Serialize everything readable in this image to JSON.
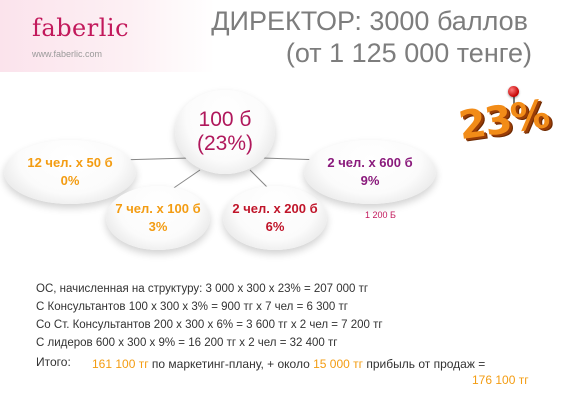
{
  "logo": {
    "name": "faberlic",
    "url": "www.faberlic.com"
  },
  "title": {
    "line1": "ДИРЕКТОР: 3000 баллов",
    "line2": "(от 1 125 000 тенге)"
  },
  "badge": "23%",
  "colors": {
    "brand": "#c2185b",
    "orange": "#f39c12",
    "red": "#c0152a",
    "purple": "#8a1a7c",
    "gray": "#7d7d7d"
  },
  "tree": {
    "main": {
      "line1": "100 б",
      "line2": "(23%)"
    },
    "left": {
      "line1": "12 чел. х 50 б",
      "line2": "0%"
    },
    "mid_left": {
      "line1": "7 чел. х 100 б",
      "line2": "3%"
    },
    "mid_right": {
      "line1": "2 чел. х 200 б",
      "line2": "6%"
    },
    "right": {
      "line1": "2 чел. х 600 б",
      "line2": "9%"
    }
  },
  "note": "1 200 Б",
  "calculations": [
    "ОС, начисленная на структуру: 3 000 х 300 х 23% = 207 000 тг",
    "С Консультантов 100 х 300 х 3% = 900 тг х 7 чел = 6 300 тг",
    "Со Ст. Консультантов 200 х 300 х 6% = 3 600 тг х 2 чел = 7 200 тг",
    "С лидеров 600 х 300 х 9% = 16 200 тг х 2 чел = 32 400 тг"
  ],
  "total": {
    "label": "Итого:",
    "part1": "161 100 тг",
    "part2": " по маркетинг-плану, + около ",
    "part3": "15 000 тг",
    "part4": " прибыль от продаж =",
    "final": "176 100 тг"
  }
}
